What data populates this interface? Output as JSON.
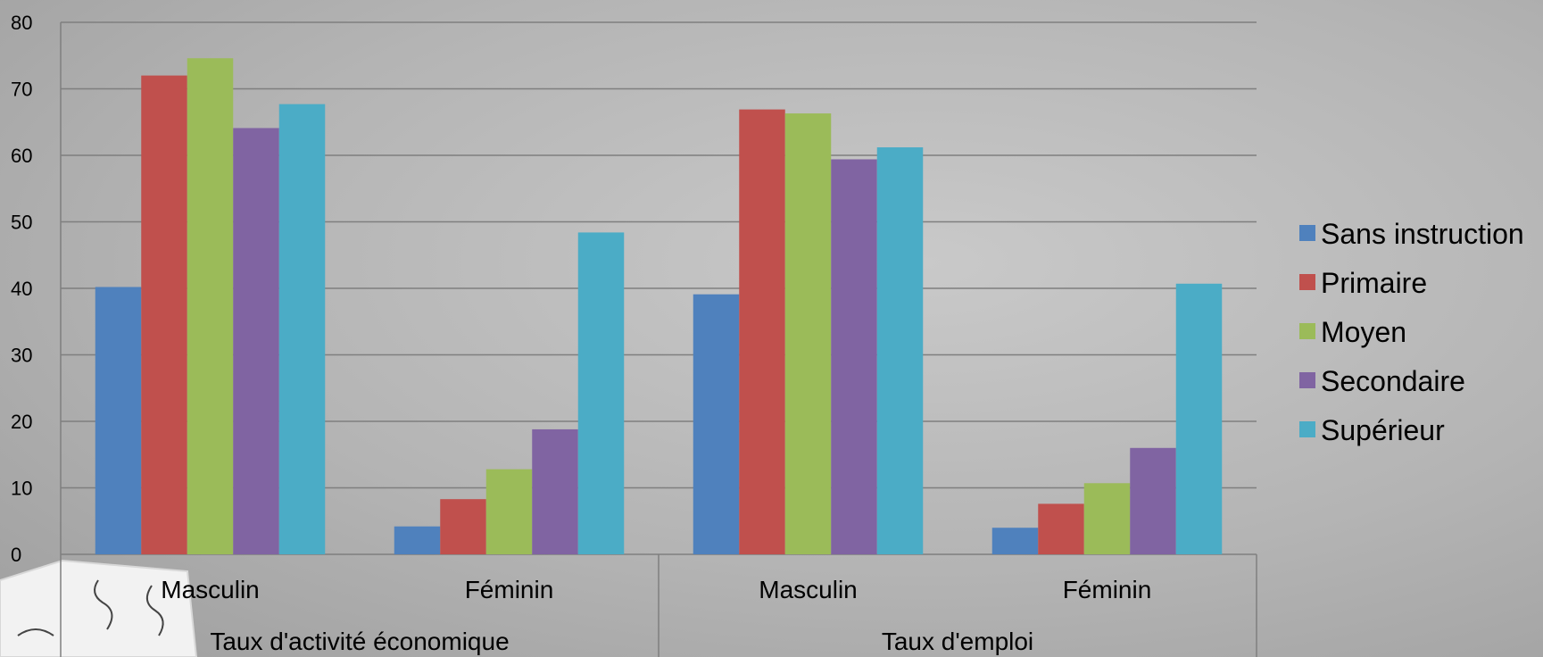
{
  "chart_data": {
    "type": "bar",
    "groups": [
      {
        "label": "Taux d'activité économique",
        "categories": [
          "Masculin",
          "Féminin"
        ]
      },
      {
        "label": "Taux d'emploi",
        "categories": [
          "Masculin",
          "Féminin"
        ]
      }
    ],
    "categories": [
      "Masculin",
      "Féminin",
      "Masculin",
      "Féminin"
    ],
    "series": [
      {
        "name": "Sans instruction",
        "color": "#4f81bd",
        "values": [
          40.2,
          4.2,
          39.1,
          4.0
        ]
      },
      {
        "name": "Primaire",
        "color": "#c0504d",
        "values": [
          72.0,
          8.3,
          66.9,
          7.6
        ]
      },
      {
        "name": "Moyen",
        "color": "#9bbb59",
        "values": [
          74.6,
          12.8,
          66.3,
          10.7
        ]
      },
      {
        "name": "Secondaire",
        "color": "#8064a2",
        "values": [
          64.1,
          18.8,
          59.4,
          16.0
        ]
      },
      {
        "name": "Supérieur",
        "color": "#4bacc6",
        "values": [
          67.7,
          48.4,
          61.2,
          40.7
        ]
      }
    ],
    "ylim": [
      0,
      80
    ],
    "yticks": [
      0,
      10,
      20,
      30,
      40,
      50,
      60,
      70,
      80
    ],
    "grid": true,
    "legend_position": "right",
    "title": "",
    "xlabel": "",
    "ylabel": ""
  }
}
